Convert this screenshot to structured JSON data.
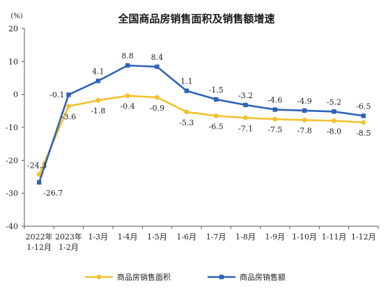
{
  "chart_data": {
    "type": "line",
    "title": "全国商品房销售面积及销售额增速",
    "ylabel": "(%)",
    "xlabel": "",
    "ylim": [
      -40,
      20
    ],
    "yticks": [
      "20",
      "10",
      "0",
      "-10",
      "-20",
      "-30",
      "-40"
    ],
    "grid": false,
    "legend_position": "bottom",
    "categories": [
      [
        "2022年",
        "1-12月"
      ],
      [
        "2023年",
        "1-2月"
      ],
      [
        "1-3月"
      ],
      [
        "1-4月"
      ],
      [
        "1-5月"
      ],
      [
        "1-6月"
      ],
      [
        "1-7月"
      ],
      [
        "1-8月"
      ],
      [
        "1-9月"
      ],
      [
        "1-10月"
      ],
      [
        "1-11月"
      ],
      [
        "1-12月"
      ]
    ],
    "series": [
      {
        "name": "商品房销售面积",
        "color": "#F5C02C",
        "marker": "circle",
        "values": [
          -24.3,
          -3.6,
          -1.8,
          -0.4,
          -0.9,
          -5.3,
          -6.5,
          -7.1,
          -7.5,
          -7.8,
          -8.0,
          -8.5
        ],
        "labels": [
          "-24.3",
          "-3.6",
          "-1.8",
          "-0.4",
          "-0.9",
          "-5.3",
          "-6.5",
          "-7.1",
          "-7.5",
          "-7.8",
          "-8.0",
          "-8.5"
        ]
      },
      {
        "name": "商品房销售额",
        "color": "#2E62B8",
        "marker": "square",
        "values": [
          -26.7,
          -0.1,
          4.1,
          8.8,
          8.4,
          1.1,
          -1.5,
          -3.2,
          -4.6,
          -4.9,
          -5.2,
          -6.5
        ],
        "labels": [
          "-26.7",
          "-0.1",
          "4.1",
          "8.8",
          "8.4",
          "1.1",
          "-1.5",
          "-3.2",
          "-4.6",
          "-4.9",
          "-5.2",
          "-6.5"
        ]
      }
    ]
  }
}
